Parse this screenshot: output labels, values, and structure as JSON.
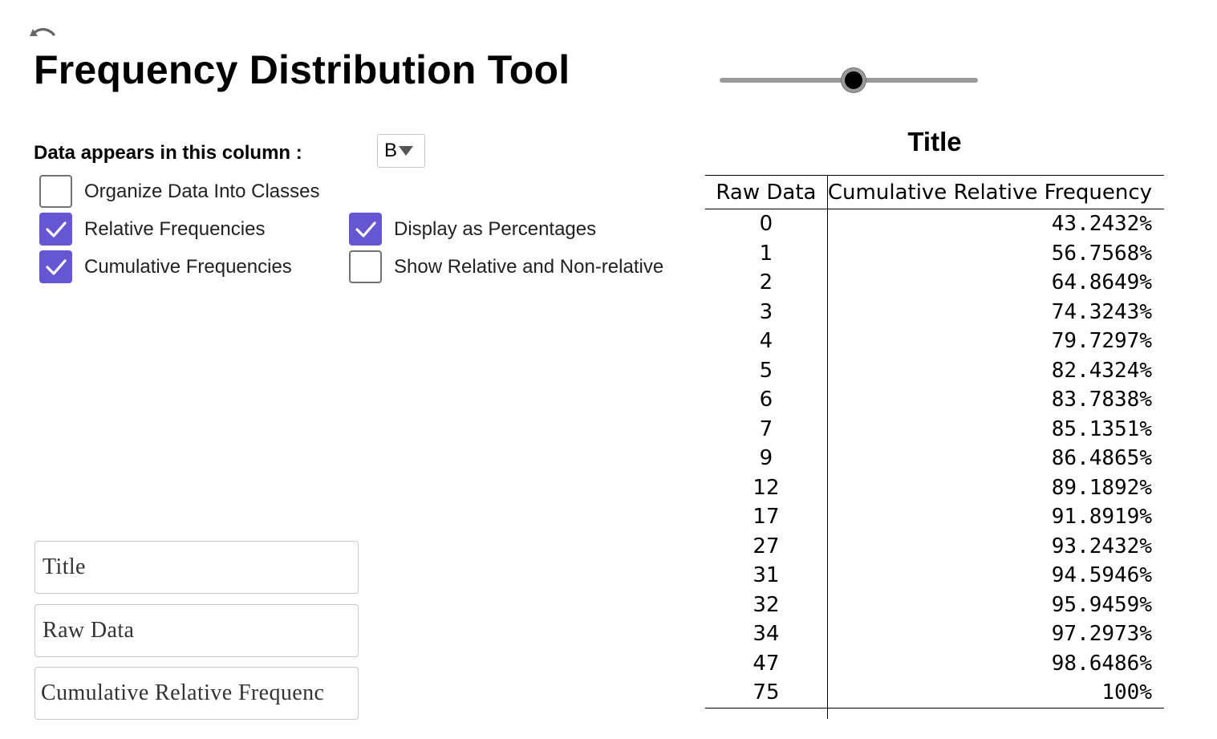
{
  "app": {
    "title": "Frequency Distribution Tool"
  },
  "toolbar": {
    "undo_icon": "undo-icon"
  },
  "slider": {
    "value": 0.52
  },
  "column_select": {
    "label": "Data appears in this column :",
    "value": "B"
  },
  "options": {
    "organize": {
      "label": "Organize Data Into Classes",
      "checked": false
    },
    "relative": {
      "label": "Relative Frequencies",
      "checked": true
    },
    "cumulative": {
      "label": "Cumulative Frequencies",
      "checked": true
    },
    "percentages": {
      "label": "Display as Percentages",
      "checked": true
    },
    "show_both": {
      "label": "Show Relative and Non-relative",
      "checked": false
    }
  },
  "inputs": {
    "title": "Title",
    "raw_data_header": "Raw Data",
    "freq_header": "Cumulative Relative Frequenc"
  },
  "colors": {
    "checkbox_checked": "#6557d2",
    "slider_track": "#9a9a9a"
  },
  "table": {
    "title": "Title",
    "headers": [
      "Raw Data",
      "Cumulative Relative Frequency"
    ],
    "rows": [
      [
        "0",
        "43.2432%"
      ],
      [
        "1",
        "56.7568%"
      ],
      [
        "2",
        "64.8649%"
      ],
      [
        "3",
        "74.3243%"
      ],
      [
        "4",
        "79.7297%"
      ],
      [
        "5",
        "82.4324%"
      ],
      [
        "6",
        "83.7838%"
      ],
      [
        "7",
        "85.1351%"
      ],
      [
        "9",
        "86.4865%"
      ],
      [
        "12",
        "89.1892%"
      ],
      [
        "17",
        "91.8919%"
      ],
      [
        "27",
        "93.2432%"
      ],
      [
        "31",
        "94.5946%"
      ],
      [
        "32",
        "95.9459%"
      ],
      [
        "34",
        "97.2973%"
      ],
      [
        "47",
        "98.6486%"
      ],
      [
        "75",
        "100%"
      ]
    ]
  }
}
